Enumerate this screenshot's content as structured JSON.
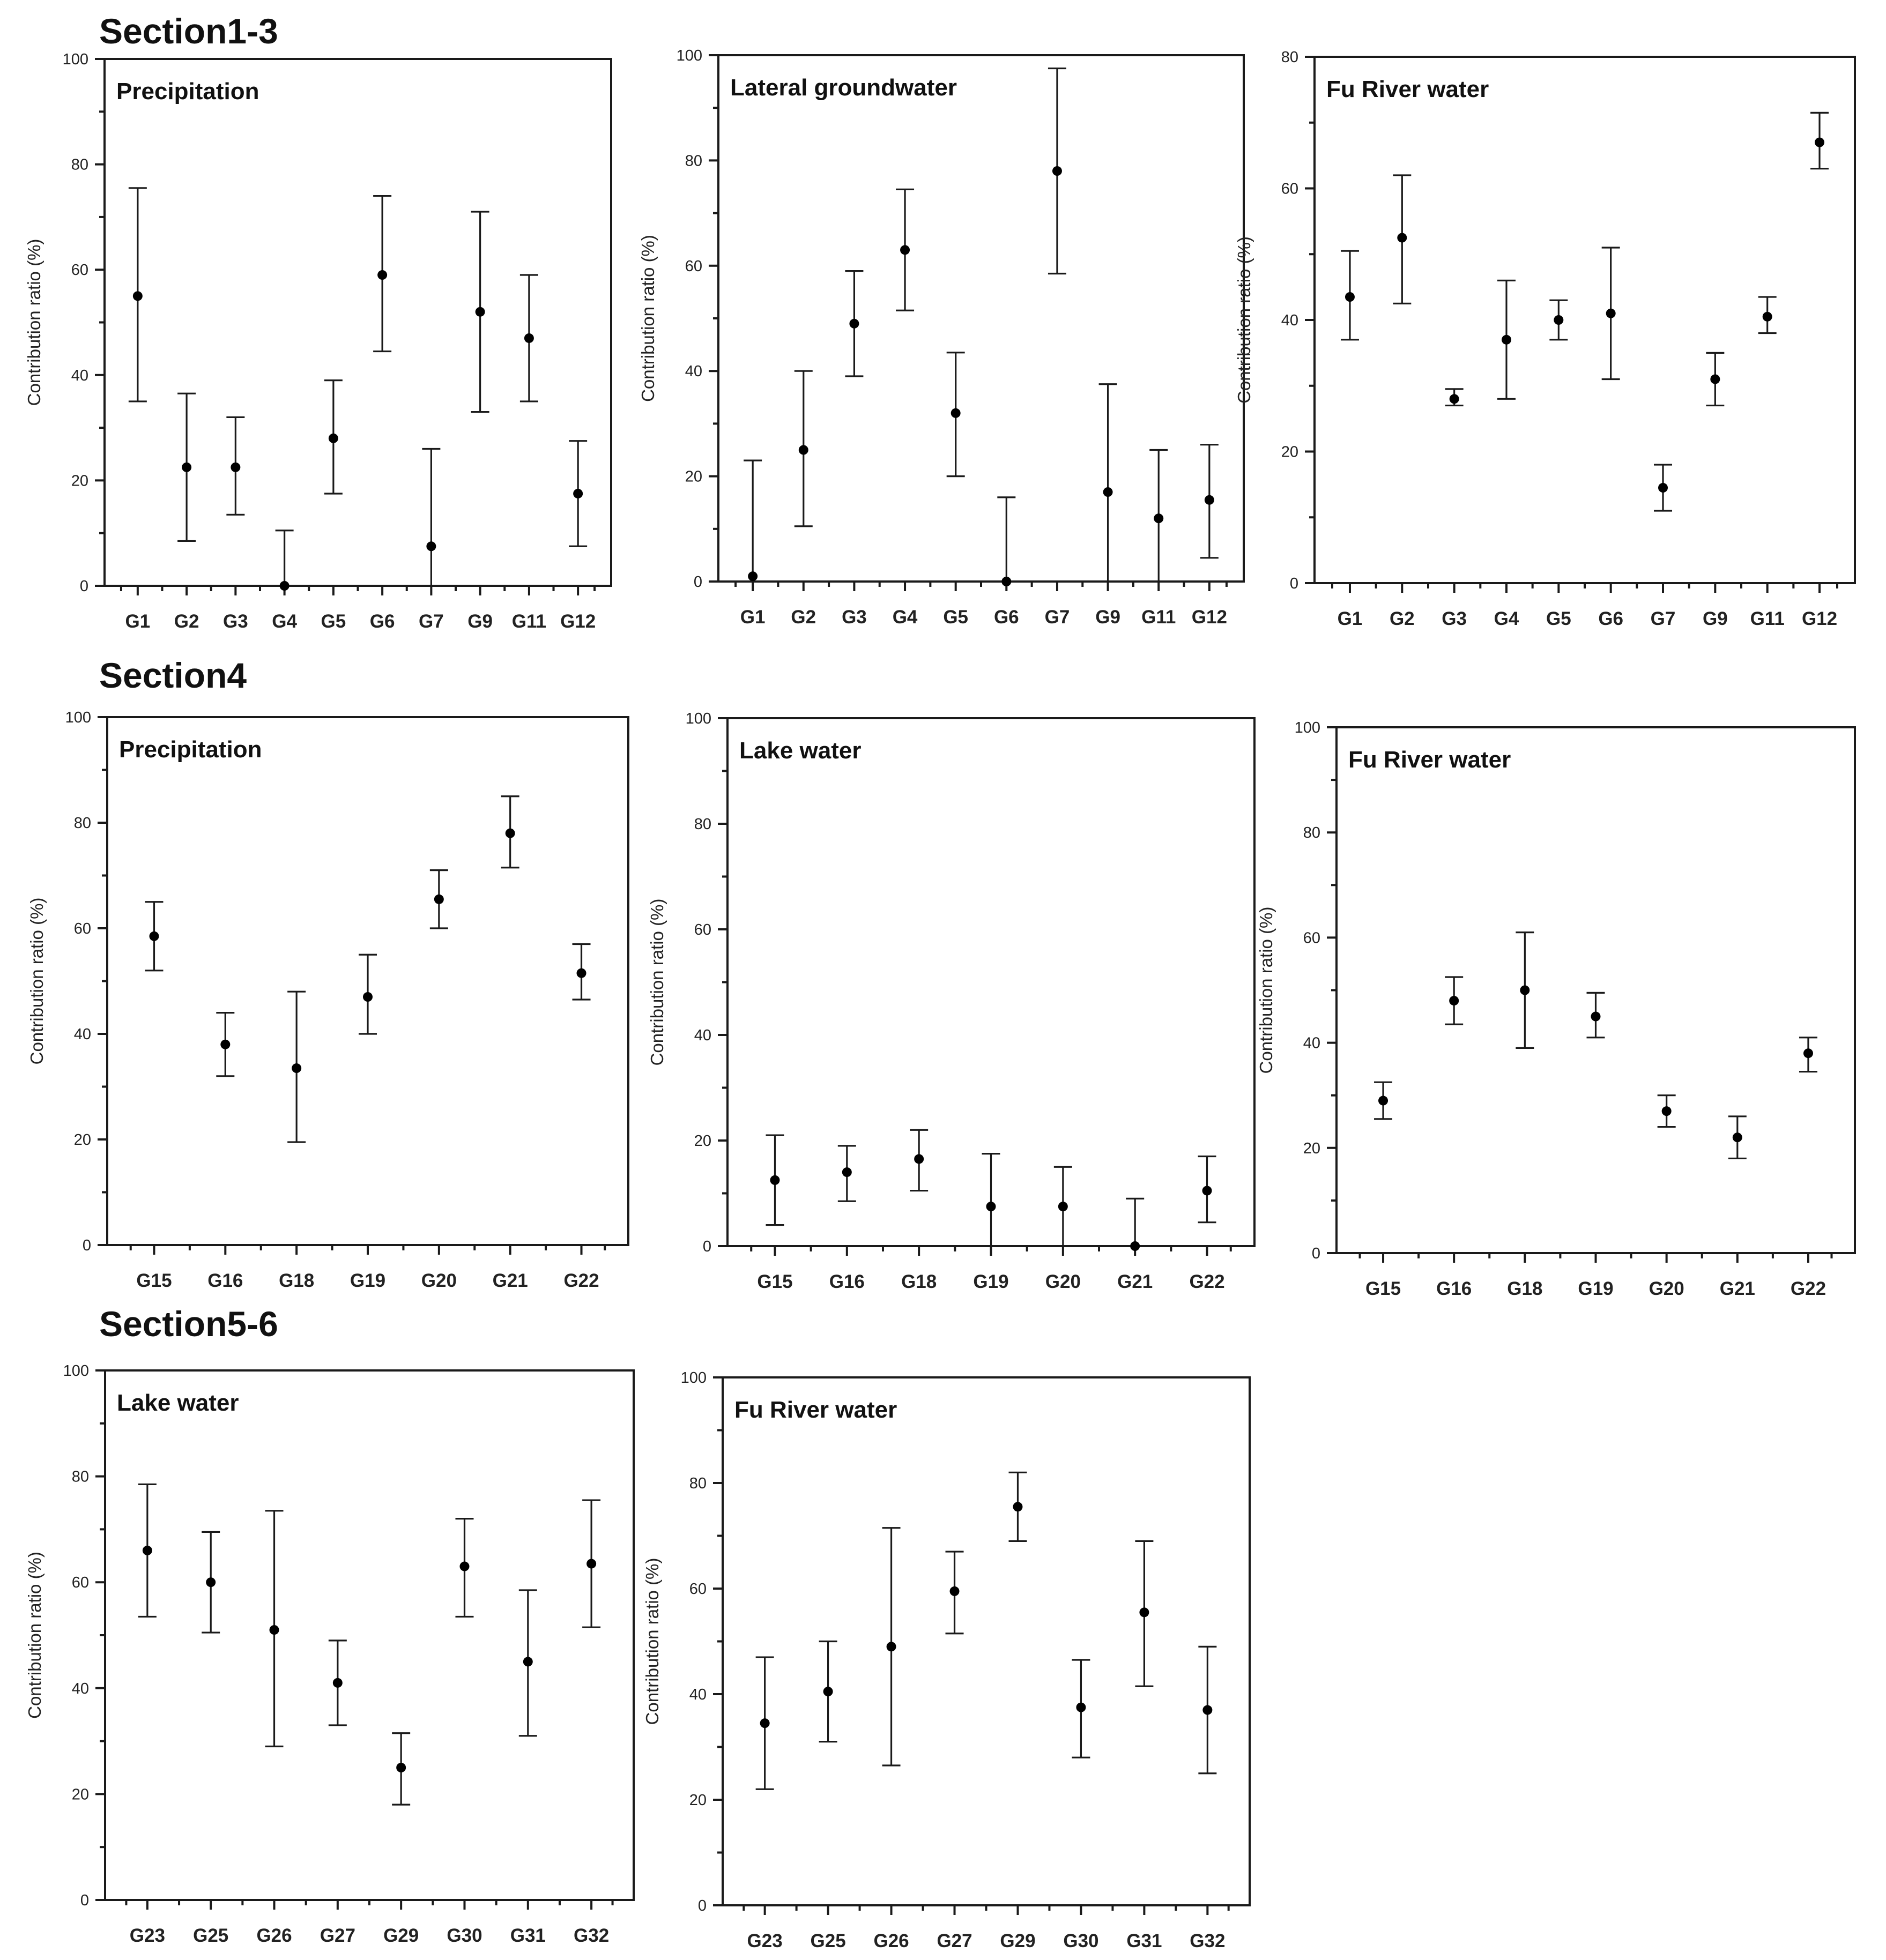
{
  "sections": [
    {
      "title": "Section1-3"
    },
    {
      "title": "Section4"
    },
    {
      "title": "Section5-6"
    }
  ],
  "chart_data": [
    {
      "type": "scatter",
      "section": "Section1-3",
      "title": "Precipitation",
      "ylabel": "Contribution ratio (%)",
      "ylim": [
        0,
        100
      ],
      "yticks": [
        0,
        20,
        40,
        60,
        80,
        100
      ],
      "categories": [
        "G1",
        "G2",
        "G3",
        "G4",
        "G5",
        "G6",
        "G7",
        "G9",
        "G11",
        "G12"
      ],
      "values": [
        55,
        22.5,
        22.5,
        0,
        28,
        59,
        7.5,
        52,
        47,
        17.5
      ],
      "err_low": [
        35,
        8.5,
        13.5,
        0,
        17.5,
        44.5,
        0,
        33,
        35,
        7.5
      ],
      "err_high": [
        75.5,
        36.5,
        32,
        10.5,
        39,
        74,
        26,
        71,
        59,
        27.5
      ]
    },
    {
      "type": "scatter",
      "section": "Section1-3",
      "title": "Lateral groundwater",
      "ylabel": "Contribution ratio (%)",
      "ylim": [
        0,
        100
      ],
      "yticks": [
        0,
        20,
        40,
        60,
        80,
        100
      ],
      "categories": [
        "G1",
        "G2",
        "G3",
        "G4",
        "G5",
        "G6",
        "G7",
        "G9",
        "G11",
        "G12"
      ],
      "values": [
        1,
        25,
        49,
        63,
        32,
        0,
        78,
        17,
        12,
        15.5
      ],
      "err_low": [
        0,
        10.5,
        39,
        51.5,
        20,
        0,
        58.5,
        0,
        0,
        4.5
      ],
      "err_high": [
        23,
        40,
        59,
        74.5,
        43.5,
        16,
        97.5,
        37.5,
        25,
        26
      ]
    },
    {
      "type": "scatter",
      "section": "Section1-3",
      "title": "Fu River water",
      "ylabel": "Contribution ratio (%)",
      "ylim": [
        0,
        80
      ],
      "yticks": [
        0,
        20,
        40,
        60,
        80
      ],
      "categories": [
        "G1",
        "G2",
        "G3",
        "G4",
        "G5",
        "G6",
        "G7",
        "G9",
        "G11",
        "G12"
      ],
      "values": [
        43.5,
        52.5,
        28,
        37,
        40,
        41,
        14.5,
        31,
        40.5,
        67
      ],
      "err_low": [
        37,
        42.5,
        27,
        28,
        37,
        31,
        11,
        27,
        38,
        63
      ],
      "err_high": [
        50.5,
        62,
        29.5,
        46,
        43,
        51,
        18,
        35,
        43.5,
        71.5
      ]
    },
    {
      "type": "scatter",
      "section": "Section4",
      "title": "Precipitation",
      "ylabel": "Contribution ratio (%)",
      "ylim": [
        0,
        100
      ],
      "yticks": [
        0,
        20,
        40,
        60,
        80,
        100
      ],
      "categories": [
        "G15",
        "G16",
        "G18",
        "G19",
        "G20",
        "G21",
        "G22"
      ],
      "values": [
        58.5,
        38,
        33.5,
        47,
        65.5,
        78,
        51.5
      ],
      "err_low": [
        52,
        32,
        19.5,
        40,
        60,
        71.5,
        46.5
      ],
      "err_high": [
        65,
        44,
        48,
        55,
        71,
        85,
        57
      ]
    },
    {
      "type": "scatter",
      "section": "Section4",
      "title": "Lake water",
      "ylabel": "Contribution ratio (%)",
      "ylim": [
        0,
        100
      ],
      "yticks": [
        0,
        20,
        40,
        60,
        80,
        100
      ],
      "categories": [
        "G15",
        "G16",
        "G18",
        "G19",
        "G20",
        "G21",
        "G22"
      ],
      "values": [
        12.5,
        14,
        16.5,
        7.5,
        7.5,
        0,
        10.5
      ],
      "err_low": [
        4,
        8.5,
        10.5,
        0,
        0,
        0,
        4.5
      ],
      "err_high": [
        21,
        19,
        22,
        17.5,
        15,
        9,
        17
      ]
    },
    {
      "type": "scatter",
      "section": "Section4",
      "title": "Fu River water",
      "ylabel": "Contribution ratio (%)",
      "ylim": [
        0,
        100
      ],
      "yticks": [
        0,
        20,
        40,
        60,
        80,
        100
      ],
      "categories": [
        "G15",
        "G16",
        "G18",
        "G19",
        "G20",
        "G21",
        "G22"
      ],
      "values": [
        29,
        48,
        50,
        45,
        27,
        22,
        38
      ],
      "err_low": [
        25.5,
        43.5,
        39,
        41,
        24,
        18,
        34.5
      ],
      "err_high": [
        32.5,
        52.5,
        61,
        49.5,
        30,
        26,
        41
      ]
    },
    {
      "type": "scatter",
      "section": "Section5-6",
      "title": "Lake water",
      "ylabel": "Contribution ratio (%)",
      "ylim": [
        0,
        100
      ],
      "yticks": [
        0,
        20,
        40,
        60,
        80,
        100
      ],
      "categories": [
        "G23",
        "G25",
        "G26",
        "G27",
        "G29",
        "G30",
        "G31",
        "G32"
      ],
      "values": [
        66,
        60,
        51,
        41,
        25,
        63,
        45,
        63.5
      ],
      "err_low": [
        53.5,
        50.5,
        29,
        33,
        18,
        53.5,
        31,
        51.5
      ],
      "err_high": [
        78.5,
        69.5,
        73.5,
        49,
        31.5,
        72,
        58.5,
        75.5
      ]
    },
    {
      "type": "scatter",
      "section": "Section5-6",
      "title": "Fu River water",
      "ylabel": "Contribution ratio (%)",
      "ylim": [
        0,
        100
      ],
      "yticks": [
        0,
        20,
        40,
        60,
        80,
        100
      ],
      "categories": [
        "G23",
        "G25",
        "G26",
        "G27",
        "G29",
        "G30",
        "G31",
        "G32"
      ],
      "values": [
        34.5,
        40.5,
        49,
        59.5,
        75.5,
        37.5,
        55.5,
        37
      ],
      "err_low": [
        22,
        31,
        26.5,
        51.5,
        69,
        28,
        41.5,
        25
      ],
      "err_high": [
        47,
        50,
        71.5,
        67,
        82,
        46.5,
        69,
        49
      ]
    }
  ]
}
